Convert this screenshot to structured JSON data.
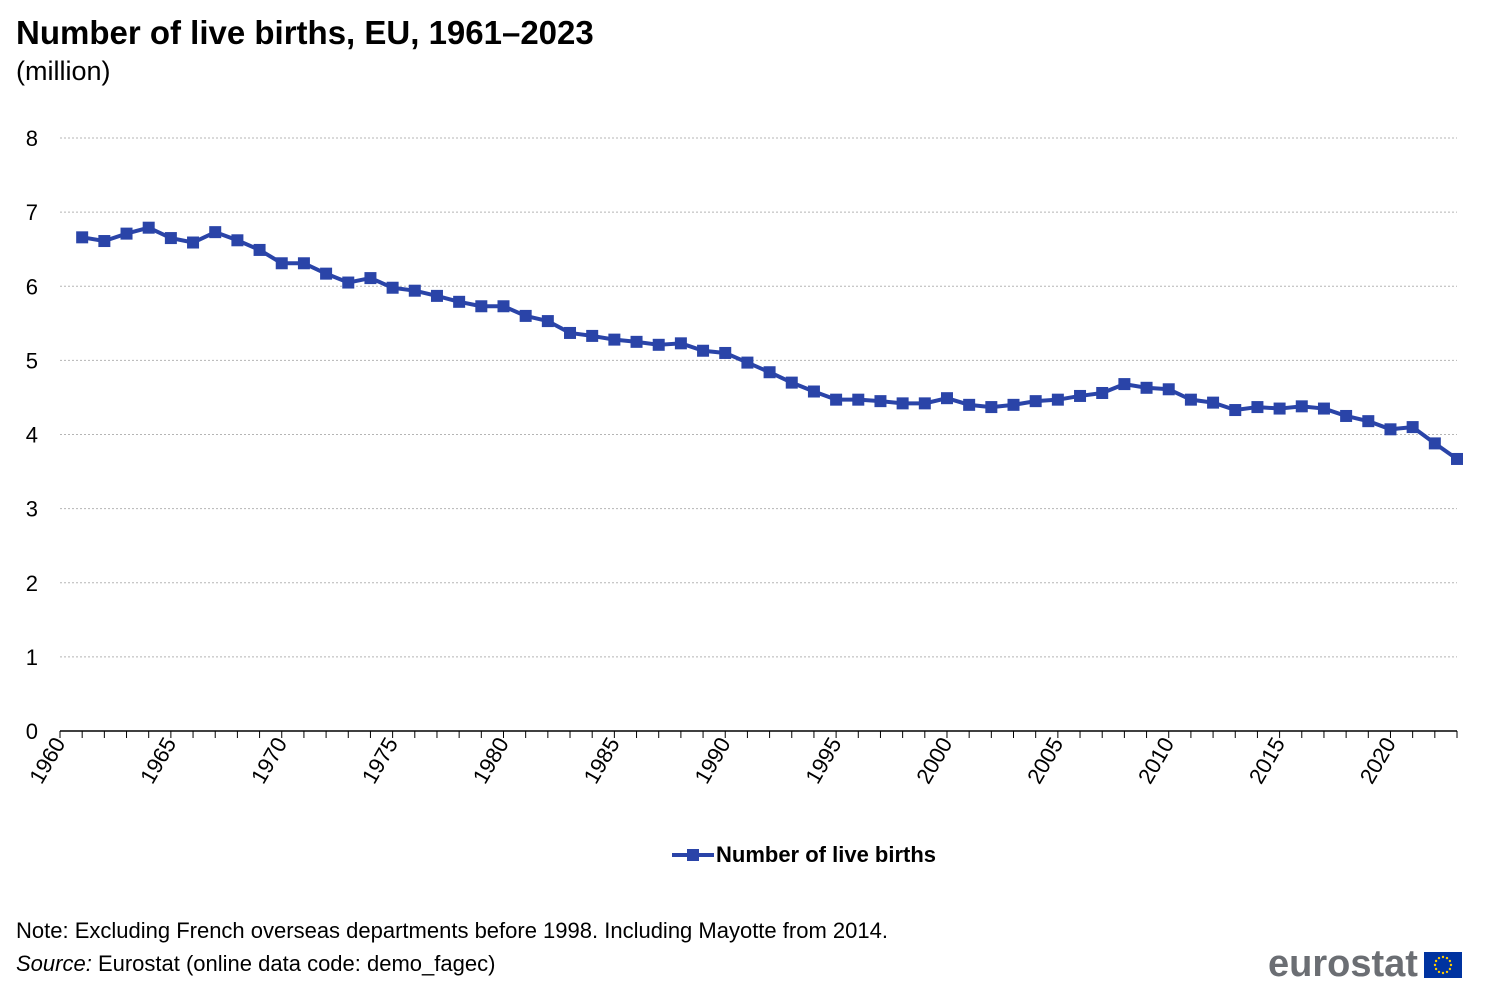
{
  "header": {
    "title": "Number of live births, EU, 1961–2023",
    "subtitle": "(million)"
  },
  "footer": {
    "note": "Note: Excluding French overseas departments before 1998. Including Mayotte from 2014.",
    "source_label": "Source:",
    "source_text": " Eurostat (online data code: demo_fagec)",
    "logo_text": "eurostat"
  },
  "colors": {
    "series": "#2a44a8",
    "grid": "#b5b5b5",
    "eu_flag": "#0033a0",
    "eu_star": "#ffcc00",
    "logo": "#6b6e73"
  },
  "chart_data": {
    "type": "line",
    "title": "Number of live births, EU, 1961–2023",
    "subtitle": "(million)",
    "ylim": [
      0,
      8
    ],
    "y_ticks": [
      "0",
      "1",
      "2",
      "3",
      "4",
      "5",
      "6",
      "7",
      "8"
    ],
    "x_ticks": [
      "1960",
      "1965",
      "1970",
      "1975",
      "1980",
      "1985",
      "1990",
      "1995",
      "2000",
      "2005",
      "2010",
      "2015",
      "2020"
    ],
    "grid": true,
    "legend_position": "bottom-center",
    "x": [
      1961,
      1962,
      1963,
      1964,
      1965,
      1966,
      1967,
      1968,
      1969,
      1970,
      1971,
      1972,
      1973,
      1974,
      1975,
      1976,
      1977,
      1978,
      1979,
      1980,
      1981,
      1982,
      1983,
      1984,
      1985,
      1986,
      1987,
      1988,
      1989,
      1990,
      1991,
      1992,
      1993,
      1994,
      1995,
      1996,
      1997,
      1998,
      1999,
      2000,
      2001,
      2002,
      2003,
      2004,
      2005,
      2006,
      2007,
      2008,
      2009,
      2010,
      2011,
      2012,
      2013,
      2014,
      2015,
      2016,
      2017,
      2018,
      2019,
      2020,
      2021,
      2022,
      2023
    ],
    "series": [
      {
        "name": "Number of live births",
        "marker": "square",
        "values": [
          6.66,
          6.61,
          6.71,
          6.79,
          6.65,
          6.59,
          6.73,
          6.62,
          6.49,
          6.31,
          6.31,
          6.17,
          6.05,
          6.11,
          5.98,
          5.94,
          5.87,
          5.79,
          5.73,
          5.73,
          5.6,
          5.53,
          5.37,
          5.33,
          5.28,
          5.25,
          5.21,
          5.23,
          5.13,
          5.1,
          4.97,
          4.84,
          4.7,
          4.58,
          4.47,
          4.47,
          4.45,
          4.42,
          4.42,
          4.49,
          4.4,
          4.37,
          4.4,
          4.45,
          4.47,
          4.52,
          4.56,
          4.68,
          4.63,
          4.61,
          4.47,
          4.43,
          4.33,
          4.37,
          4.35,
          4.38,
          4.35,
          4.25,
          4.18,
          4.07,
          4.1,
          3.88,
          3.67
        ]
      }
    ]
  }
}
